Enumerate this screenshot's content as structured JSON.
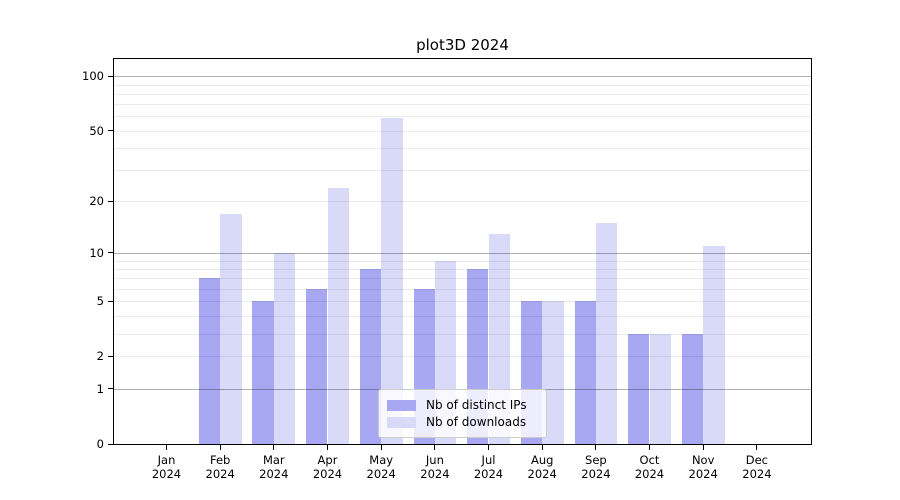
{
  "figure": {
    "title": "plot3D 2024",
    "chart_data": {
      "type": "bar",
      "title": "plot3D 2024",
      "categories": [
        "Jan",
        "Feb",
        "Mar",
        "Apr",
        "May",
        "Jun",
        "Jul",
        "Aug",
        "Sep",
        "Oct",
        "Nov",
        "Dec"
      ],
      "category_year_line": "2024",
      "series": [
        {
          "name": "Nb of distinct IPs",
          "color": "#a7a7f2",
          "values": [
            0,
            7,
            5,
            6,
            8,
            6,
            8,
            5,
            5,
            3,
            3,
            0
          ]
        },
        {
          "name": "Nb of downloads",
          "color": "#d9d9f8",
          "values": [
            0,
            17,
            10,
            24,
            59,
            9,
            13,
            5,
            15,
            3,
            11,
            0
          ]
        }
      ],
      "xlabel": "",
      "ylabel": "",
      "y_scale": "log10(1+value)",
      "y_tick_labels": [
        "0",
        "1",
        "2",
        "5",
        "10",
        "20",
        "50",
        "100"
      ],
      "y_tick_values": [
        0,
        1,
        2,
        5,
        10,
        20,
        50,
        100
      ],
      "y_major_gridline_values": [
        1,
        10,
        100
      ],
      "y_minor_gridline_values": [
        2,
        3,
        4,
        5,
        6,
        7,
        8,
        9,
        20,
        30,
        40,
        50,
        60,
        70,
        80,
        90
      ],
      "ylim": [
        0,
        127
      ],
      "grid": true,
      "legend_position": "lower center"
    },
    "colors": {
      "major_grid": "rgba(0,0,0,0.30)",
      "minor_grid": "rgba(0,0,0,0.08)",
      "spine": "#000000",
      "background": "#ffffff",
      "legend_bg": "rgba(255,255,255,0.8)",
      "legend_border": "#cccccc",
      "text": "#000000"
    }
  }
}
